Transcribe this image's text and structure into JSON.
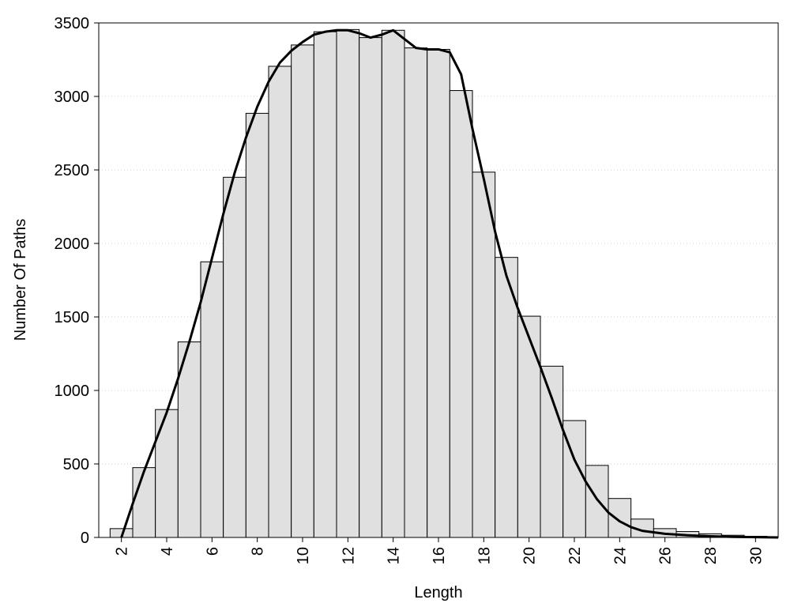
{
  "chart_data": {
    "type": "histogram",
    "x_label": "Length",
    "y_label": "Number Of Paths",
    "bins": [
      1.5,
      2.5,
      3.5,
      4.5,
      5.5,
      6.5,
      7.5,
      8.5,
      9.5,
      10.5,
      11.5,
      12.5,
      13.5,
      14.5,
      15.5,
      16.5,
      17.5,
      18.5,
      19.5,
      20.5,
      21.5,
      22.5,
      23.5,
      24.5,
      25.5,
      26.5,
      27.5,
      28.5,
      29.5,
      30.5
    ],
    "values": [
      60,
      475,
      870,
      1330,
      1875,
      2450,
      2885,
      3205,
      3350,
      3440,
      3455,
      3400,
      3450,
      3330,
      3320,
      3040,
      2485,
      1905,
      1505,
      1165,
      795,
      490,
      265,
      125,
      60,
      40,
      25,
      15,
      8
    ],
    "color": "#e0e0e0",
    "curve": {
      "type": "line",
      "color": "#000000",
      "x": [
        2,
        2.5,
        3,
        3.5,
        4,
        4.5,
        5,
        5.5,
        6,
        6.5,
        7,
        7.5,
        8,
        8.5,
        9,
        9.5,
        10,
        10.5,
        11,
        11.5,
        12,
        12.5,
        13,
        13.5,
        14,
        14.5,
        15,
        15.5,
        16,
        16.5,
        17,
        17.5,
        18,
        18.5,
        19,
        19.5,
        20,
        20.5,
        21,
        21.5,
        22,
        22.5,
        23,
        23.5,
        24,
        24.5,
        25,
        26,
        27,
        28,
        29,
        30,
        31
      ],
      "values": [
        0,
        230,
        450,
        650,
        850,
        1080,
        1330,
        1600,
        1900,
        2200,
        2480,
        2720,
        2930,
        3100,
        3230,
        3310,
        3370,
        3420,
        3440,
        3450,
        3450,
        3430,
        3400,
        3420,
        3450,
        3390,
        3330,
        3320,
        3320,
        3300,
        3150,
        2780,
        2440,
        2080,
        1780,
        1560,
        1360,
        1160,
        950,
        730,
        530,
        380,
        260,
        170,
        110,
        70,
        45,
        25,
        15,
        8,
        4,
        2,
        0
      ]
    },
    "xlim": [
      1,
      31
    ],
    "ylim": [
      0,
      3500
    ],
    "xticks": [
      2,
      4,
      6,
      8,
      10,
      12,
      14,
      16,
      18,
      20,
      22,
      24,
      26,
      28,
      30
    ],
    "yticks": [
      0,
      500,
      1000,
      1500,
      2000,
      2500,
      3000,
      3500
    ],
    "grid": true
  }
}
